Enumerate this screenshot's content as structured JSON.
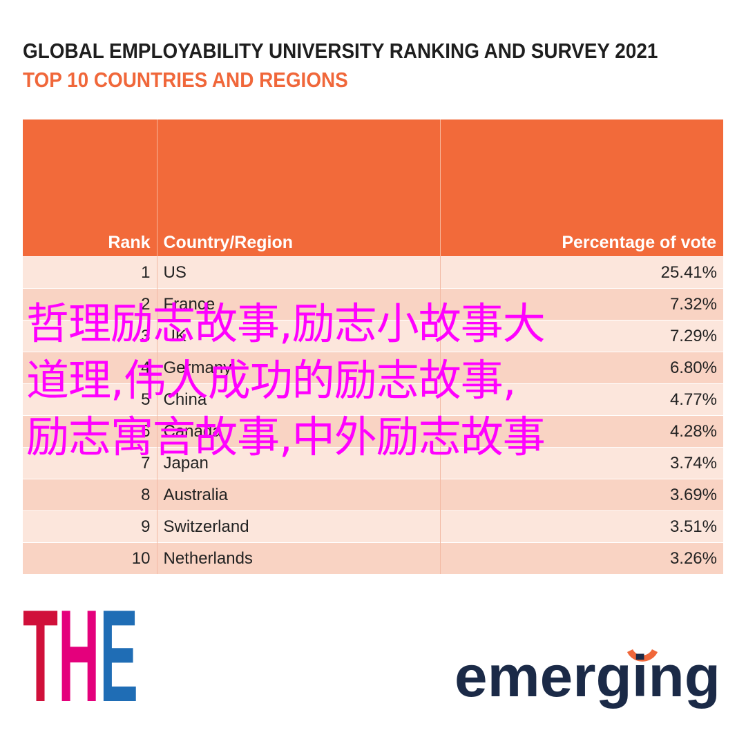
{
  "header": {
    "title": "GLOBAL EMPLOYABILITY UNIVERSITY RANKING AND SURVEY 2021",
    "subtitle": "TOP 10 COUNTRIES AND REGIONS"
  },
  "table": {
    "columns": [
      "Rank",
      "Country/Region",
      "Percentage of vote"
    ],
    "rows": [
      [
        "1",
        "US",
        "25.41%"
      ],
      [
        "2",
        "France",
        "7.32%"
      ],
      [
        "3",
        "UK",
        "7.29%"
      ],
      [
        "4",
        "Germany",
        "6.80%"
      ],
      [
        "5",
        "China",
        "4.77%"
      ],
      [
        "6",
        "Canada",
        "4.28%"
      ],
      [
        "7",
        "Japan",
        "3.74%"
      ],
      [
        "8",
        "Australia",
        "3.69%"
      ],
      [
        "9",
        "Switzerland",
        "3.51%"
      ],
      [
        "10",
        "Netherlands",
        "3.26%"
      ]
    ]
  },
  "overlay": {
    "lines": [
      "哲理励志故事,励志小故事大",
      "道理,伟人成功的励志故事,",
      "励志寓言故事,中外励志故事"
    ]
  },
  "logos": {
    "left": "THE",
    "right": "emerging"
  }
}
